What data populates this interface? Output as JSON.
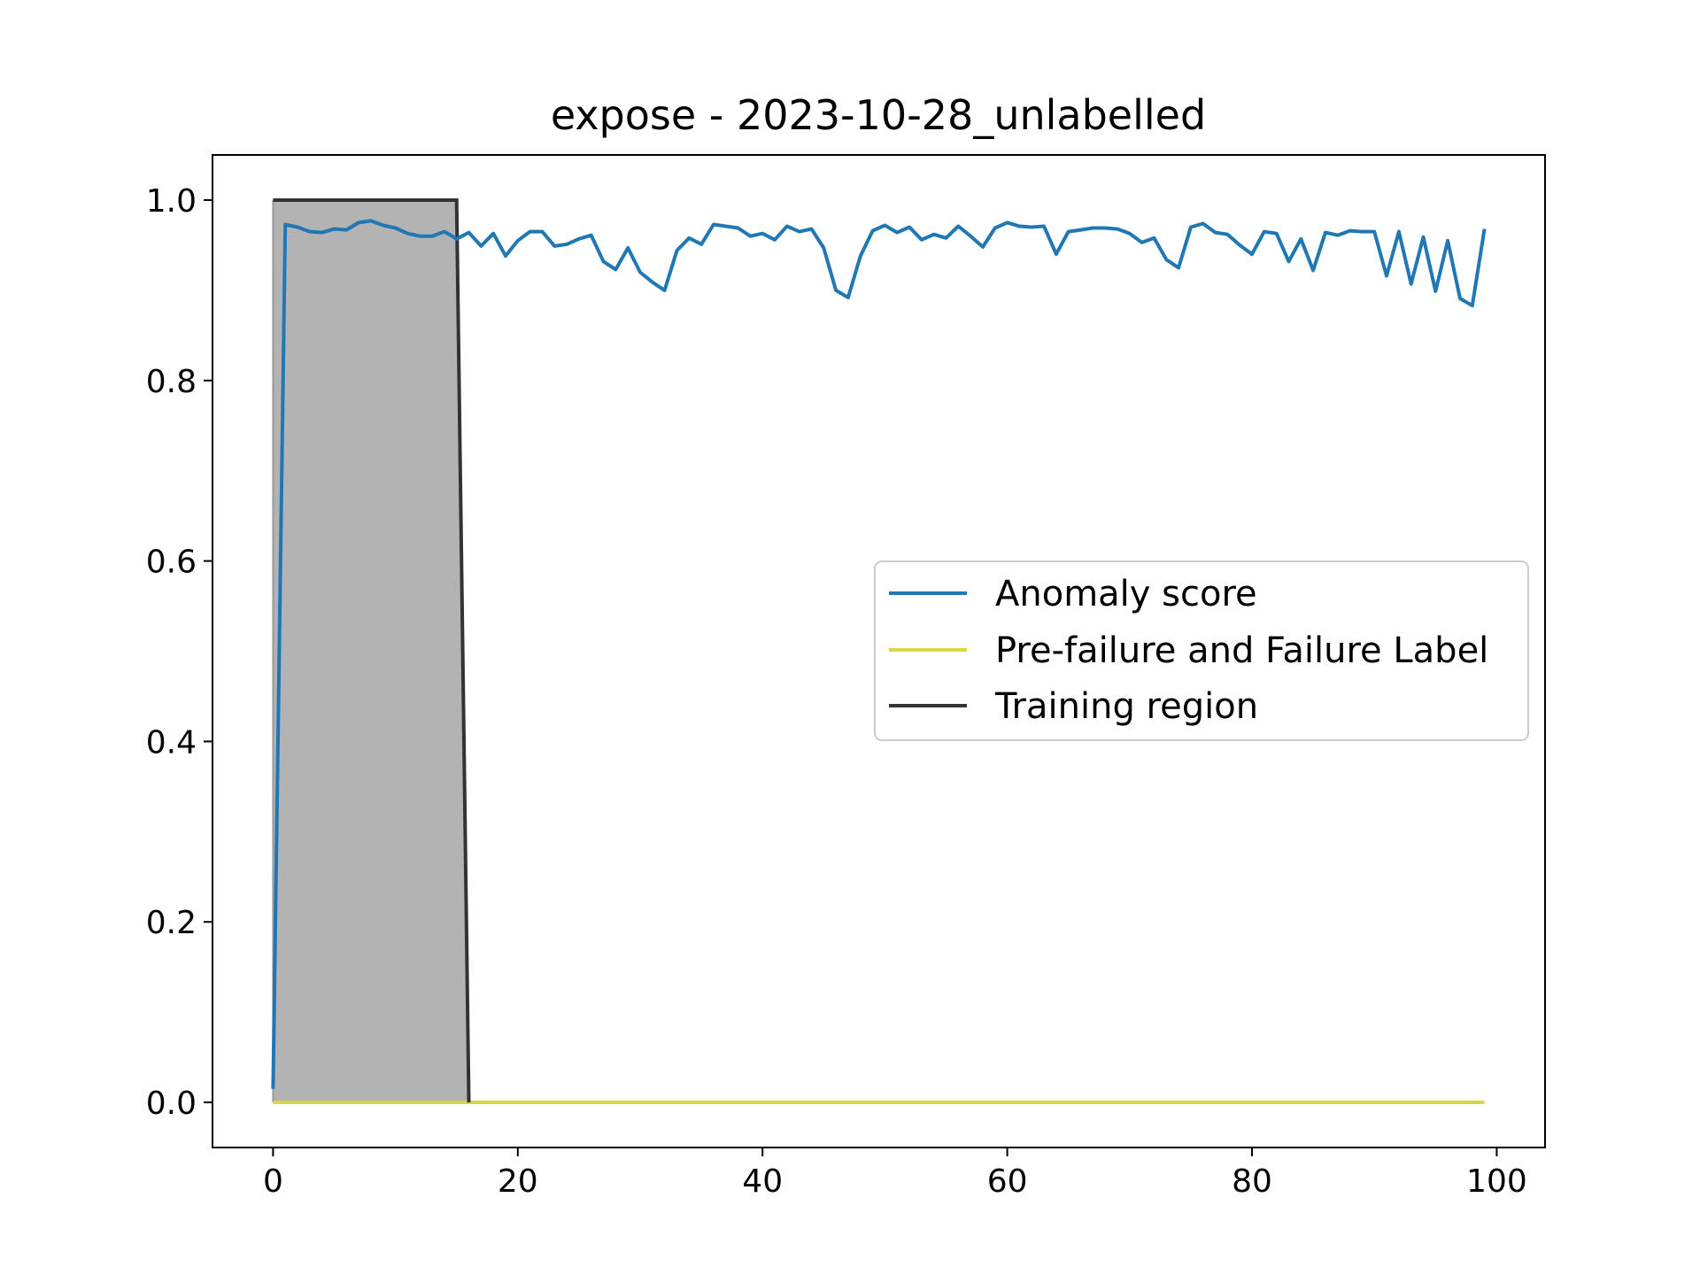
{
  "chart_data": {
    "type": "line",
    "title": "expose - 2023-10-28_unlabelled",
    "xlabel": "",
    "ylabel": "",
    "xlim": [
      -4.95,
      103.95
    ],
    "ylim": [
      -0.05,
      1.05
    ],
    "x_ticks": [
      0,
      20,
      40,
      60,
      80,
      100
    ],
    "y_ticks": [
      0.0,
      0.2,
      0.4,
      0.6,
      0.8,
      1.0
    ],
    "x_tick_labels": [
      "0",
      "20",
      "40",
      "60",
      "80",
      "100"
    ],
    "y_tick_labels": [
      "0.0",
      "0.2",
      "0.4",
      "0.6",
      "0.8",
      "1.0"
    ],
    "grid": false,
    "legend_position": "center-right",
    "series": [
      {
        "name": "Anomaly score",
        "kind": "line",
        "color": "#1f77b4",
        "x": [
          0,
          1,
          2,
          3,
          4,
          5,
          6,
          7,
          8,
          9,
          10,
          11,
          12,
          13,
          14,
          15,
          16,
          17,
          18,
          19,
          20,
          21,
          22,
          23,
          24,
          25,
          26,
          27,
          28,
          29,
          30,
          31,
          32,
          33,
          34,
          35,
          36,
          37,
          38,
          39,
          40,
          41,
          42,
          43,
          44,
          45,
          46,
          47,
          48,
          49,
          50,
          51,
          52,
          53,
          54,
          55,
          56,
          57,
          58,
          59,
          60,
          61,
          62,
          63,
          64,
          65,
          66,
          67,
          68,
          69,
          70,
          71,
          72,
          73,
          74,
          75,
          76,
          77,
          78,
          79,
          80,
          81,
          82,
          83,
          84,
          85,
          86,
          87,
          88,
          89,
          90,
          91,
          92,
          93,
          94,
          95,
          96,
          97,
          98,
          99
        ],
        "y": [
          0.015,
          0.973,
          0.97,
          0.965,
          0.964,
          0.968,
          0.967,
          0.975,
          0.977,
          0.972,
          0.969,
          0.963,
          0.96,
          0.96,
          0.965,
          0.957,
          0.964,
          0.949,
          0.963,
          0.938,
          0.955,
          0.965,
          0.965,
          0.949,
          0.951,
          0.957,
          0.961,
          0.932,
          0.923,
          0.947,
          0.92,
          0.909,
          0.9,
          0.944,
          0.958,
          0.951,
          0.973,
          0.971,
          0.969,
          0.96,
          0.963,
          0.956,
          0.971,
          0.965,
          0.968,
          0.947,
          0.9,
          0.892,
          0.938,
          0.966,
          0.972,
          0.964,
          0.97,
          0.956,
          0.962,
          0.958,
          0.971,
          0.96,
          0.948,
          0.969,
          0.975,
          0.971,
          0.97,
          0.971,
          0.94,
          0.965,
          0.967,
          0.969,
          0.969,
          0.968,
          0.963,
          0.953,
          0.958,
          0.934,
          0.925,
          0.97,
          0.974,
          0.964,
          0.962,
          0.95,
          0.94,
          0.965,
          0.963,
          0.932,
          0.957,
          0.922,
          0.964,
          0.961,
          0.966,
          0.965,
          0.965,
          0.916,
          0.965,
          0.907,
          0.959,
          0.899,
          0.955,
          0.891,
          0.883,
          0.968
        ]
      },
      {
        "name": "Pre-failure and Failure Label",
        "kind": "line",
        "color": "#d4d845",
        "x": [
          0,
          99
        ],
        "y": [
          0.0,
          0.0
        ]
      },
      {
        "name": "Training region",
        "kind": "area",
        "color": "#333333",
        "fill_color": "#b3b3b3",
        "x": [
          0,
          15,
          16
        ],
        "y": [
          1.0,
          1.0,
          0.0
        ]
      }
    ]
  }
}
